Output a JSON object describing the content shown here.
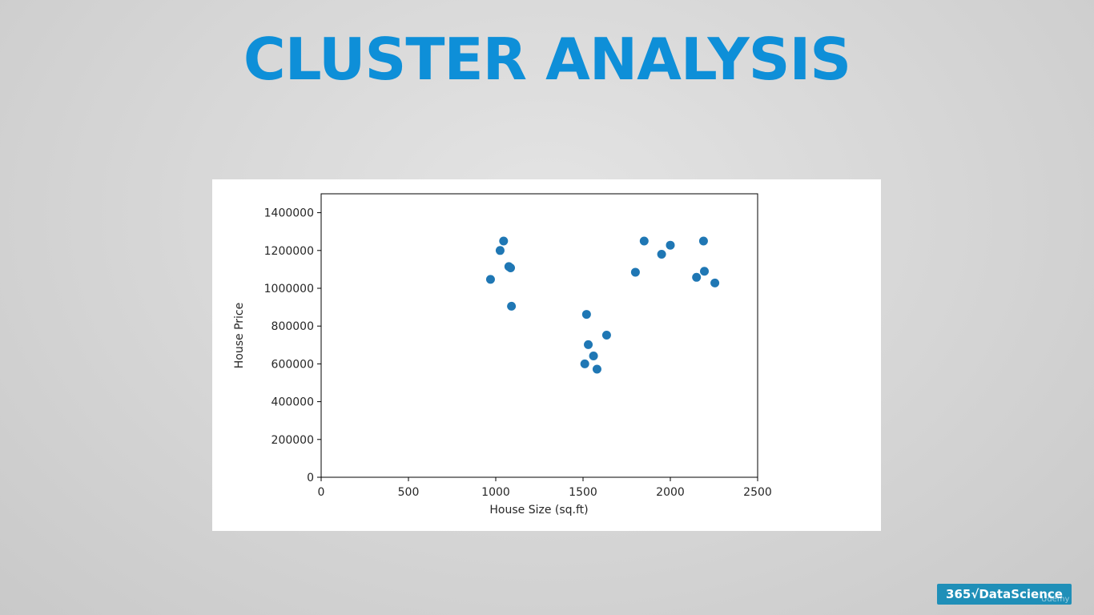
{
  "slide": {
    "title": "CLUSTER ANALYSIS",
    "logo_text": "365√DataScience",
    "watermark": "Udemy"
  },
  "chart_data": {
    "type": "scatter",
    "title": "",
    "xlabel": "House Size (sq.ft)",
    "ylabel": "House Price",
    "xlim": [
      0,
      2500
    ],
    "ylim": [
      0,
      1500000
    ],
    "x_ticks": [
      0,
      500,
      1000,
      1500,
      2000,
      2500
    ],
    "y_ticks": [
      0,
      200000,
      400000,
      600000,
      800000,
      1000000,
      1200000,
      1400000
    ],
    "grid": false,
    "point_color": "#1f77b4",
    "points": [
      {
        "x": 970,
        "y": 1047000
      },
      {
        "x": 1025,
        "y": 1200000
      },
      {
        "x": 1045,
        "y": 1250000
      },
      {
        "x": 1075,
        "y": 1115000
      },
      {
        "x": 1085,
        "y": 1108000
      },
      {
        "x": 1090,
        "y": 905000
      },
      {
        "x": 1510,
        "y": 600000
      },
      {
        "x": 1520,
        "y": 862000
      },
      {
        "x": 1530,
        "y": 702000
      },
      {
        "x": 1560,
        "y": 642000
      },
      {
        "x": 1580,
        "y": 572000
      },
      {
        "x": 1635,
        "y": 752000
      },
      {
        "x": 1800,
        "y": 1085000
      },
      {
        "x": 1850,
        "y": 1250000
      },
      {
        "x": 1950,
        "y": 1180000
      },
      {
        "x": 2000,
        "y": 1228000
      },
      {
        "x": 2150,
        "y": 1058000
      },
      {
        "x": 2190,
        "y": 1250000
      },
      {
        "x": 2195,
        "y": 1090000
      },
      {
        "x": 2255,
        "y": 1028000
      }
    ]
  }
}
